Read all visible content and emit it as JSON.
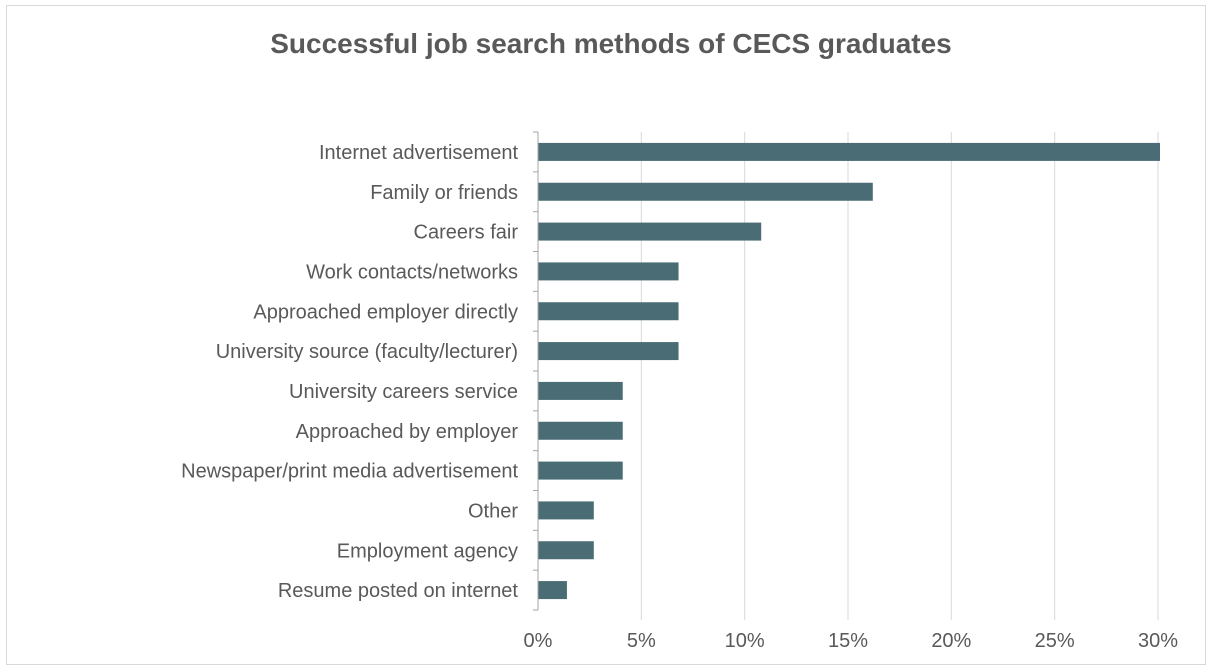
{
  "chart_data": {
    "type": "bar",
    "orientation": "horizontal",
    "title": "Successful job search methods of CECS graduates",
    "xlabel": "",
    "ylabel": "",
    "categories": [
      "Internet advertisement",
      "Family or friends",
      "Careers fair",
      "Work contacts/networks",
      "Approached employer directly",
      "University source (faculty/lecturer)",
      "University careers service",
      "Approached by employer",
      "Newspaper/print media advertisement",
      "Other",
      "Employment agency",
      "Resume posted on internet"
    ],
    "values": [
      30.1,
      16.2,
      10.8,
      6.8,
      6.8,
      6.8,
      4.1,
      4.1,
      4.1,
      2.7,
      2.7,
      1.4
    ],
    "xlim": [
      0,
      30
    ],
    "x_ticks": [
      0,
      5,
      10,
      15,
      20,
      25,
      30
    ],
    "x_tick_labels": [
      "0%",
      "5%",
      "10%",
      "15%",
      "20%",
      "25%",
      "30%"
    ],
    "grid": "vertical",
    "legend": "none",
    "colors": {
      "bar": "#4a6c75",
      "grid": "#d9d9d9",
      "text": "#595959"
    }
  }
}
